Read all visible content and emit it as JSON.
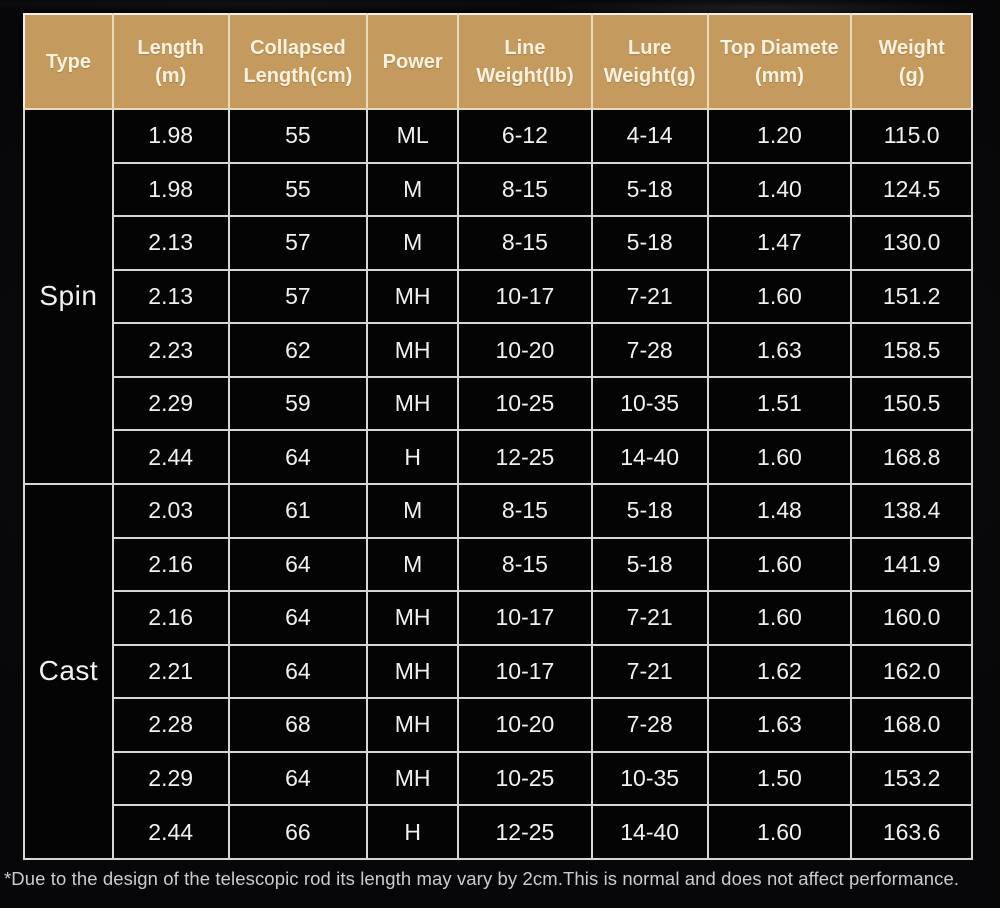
{
  "colors": {
    "page_bg": "#070709",
    "header_bg": "#c49a5e",
    "header_text": "#f9f2e0",
    "header_grid": "#e9dab8",
    "body_bg": "#040405",
    "body_text": "#f1f1f1",
    "grid_line": "#d6d6d6",
    "footnote_text": "#cccccc"
  },
  "footnote": {
    "text": "*Due to the design of the telescopic rod its length may vary by 2cm.This is normal and does not affect performance."
  },
  "table": {
    "columns": [
      {
        "id": "type",
        "label": "Type"
      },
      {
        "id": "length",
        "label": "Length\n(m)"
      },
      {
        "id": "collapsed-length",
        "label": "Collapsed\nLength(cm)"
      },
      {
        "id": "power",
        "label": "Power"
      },
      {
        "id": "line-weight",
        "label": "Line\nWeight(lb)"
      },
      {
        "id": "lure-weight",
        "label": "Lure\nWeight(g)"
      },
      {
        "id": "top-diameter",
        "label": "Top Diamete\n(mm)"
      },
      {
        "id": "weight",
        "label": "Weight\n(g)"
      }
    ],
    "sections": [
      {
        "type": "Spin",
        "rows": [
          [
            "1.98",
            "55",
            "ML",
            "6-12",
            "4-14",
            "1.20",
            "115.0"
          ],
          [
            "1.98",
            "55",
            "M",
            "8-15",
            "5-18",
            "1.40",
            "124.5"
          ],
          [
            "2.13",
            "57",
            "M",
            "8-15",
            "5-18",
            "1.47",
            "130.0"
          ],
          [
            "2.13",
            "57",
            "MH",
            "10-17",
            "7-21",
            "1.60",
            "151.2"
          ],
          [
            "2.23",
            "62",
            "MH",
            "10-20",
            "7-28",
            "1.63",
            "158.5"
          ],
          [
            "2.29",
            "59",
            "MH",
            "10-25",
            "10-35",
            "1.51",
            "150.5"
          ],
          [
            "2.44",
            "64",
            "H",
            "12-25",
            "14-40",
            "1.60",
            "168.8"
          ]
        ]
      },
      {
        "type": "Cast",
        "rows": [
          [
            "2.03",
            "61",
            "M",
            "8-15",
            "5-18",
            "1.48",
            "138.4"
          ],
          [
            "2.16",
            "64",
            "M",
            "8-15",
            "5-18",
            "1.60",
            "141.9"
          ],
          [
            "2.16",
            "64",
            "MH",
            "10-17",
            "7-21",
            "1.60",
            "160.0"
          ],
          [
            "2.21",
            "64",
            "MH",
            "10-17",
            "7-21",
            "1.62",
            "162.0"
          ],
          [
            "2.28",
            "68",
            "MH",
            "10-20",
            "7-28",
            "1.63",
            "168.0"
          ],
          [
            "2.29",
            "64",
            "MH",
            "10-25",
            "10-35",
            "1.50",
            "153.2"
          ],
          [
            "2.44",
            "66",
            "H",
            "12-25",
            "14-40",
            "1.60",
            "163.6"
          ]
        ]
      }
    ]
  }
}
